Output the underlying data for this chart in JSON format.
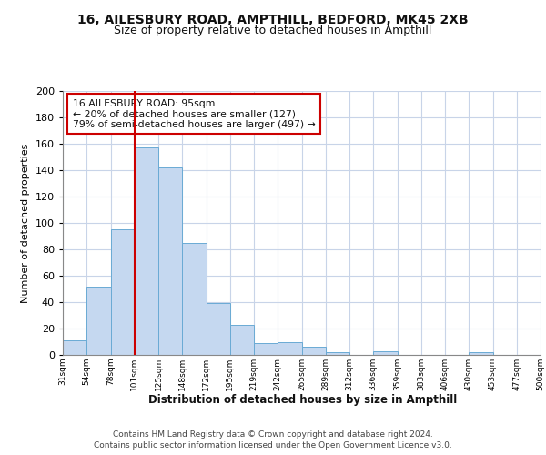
{
  "title1": "16, AILESBURY ROAD, AMPTHILL, BEDFORD, MK45 2XB",
  "title2": "Size of property relative to detached houses in Ampthill",
  "xlabel": "Distribution of detached houses by size in Ampthill",
  "ylabel": "Number of detached properties",
  "bar_values": [
    11,
    52,
    95,
    157,
    142,
    85,
    39,
    23,
    9,
    10,
    6,
    2,
    0,
    3,
    0,
    0,
    0,
    2,
    0,
    0
  ],
  "bin_labels": [
    "31sqm",
    "54sqm",
    "78sqm",
    "101sqm",
    "125sqm",
    "148sqm",
    "172sqm",
    "195sqm",
    "219sqm",
    "242sqm",
    "265sqm",
    "289sqm",
    "312sqm",
    "336sqm",
    "359sqm",
    "383sqm",
    "406sqm",
    "430sqm",
    "453sqm",
    "477sqm",
    "500sqm"
  ],
  "bar_color": "#c5d8f0",
  "bar_edge_color": "#6aaad4",
  "grid_color": "#c8d4e8",
  "bg_color": "#ffffff",
  "vline_color": "#cc0000",
  "vline_pos": 3,
  "annotation_text": "16 AILESBURY ROAD: 95sqm\n← 20% of detached houses are smaller (127)\n79% of semi-detached houses are larger (497) →",
  "annotation_box_facecolor": "#ffffff",
  "annotation_box_edgecolor": "#cc0000",
  "footer1": "Contains HM Land Registry data © Crown copyright and database right 2024.",
  "footer2": "Contains public sector information licensed under the Open Government Licence v3.0.",
  "ylim": [
    0,
    200
  ],
  "yticks": [
    0,
    20,
    40,
    60,
    80,
    100,
    120,
    140,
    160,
    180,
    200
  ]
}
